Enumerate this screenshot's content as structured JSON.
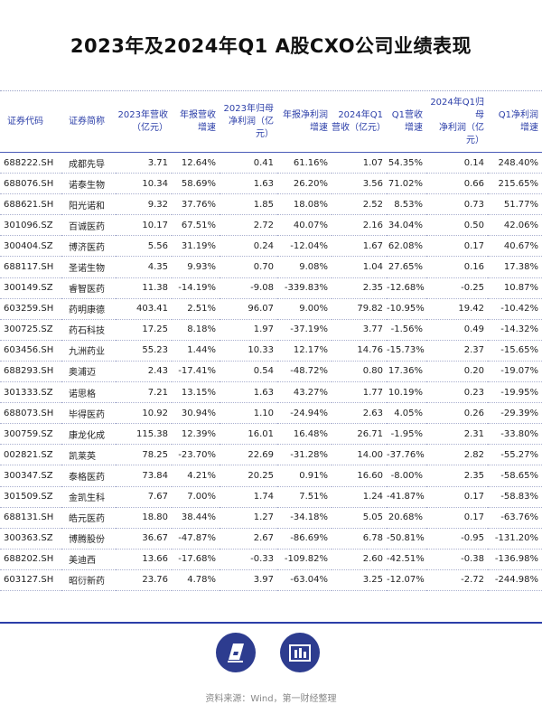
{
  "title": "2023年及2024年Q1 A股CXO公司业绩表现",
  "headers": [
    "证券代码",
    "证券简称",
    "2023年营收\n（亿元）",
    "年报营收\n增速",
    "2023年归母\n净利润（亿元）",
    "年报净利润\n增速",
    "2024年Q1\n营收（亿元）",
    "Q1营收\n增速",
    "2024年Q1归母\n净利润（亿元）",
    "Q1净利润\n增速"
  ],
  "rows": [
    [
      "688222.SH",
      "成都先导",
      "3.71",
      "12.64%",
      "0.41",
      "61.16%",
      "1.07",
      "54.35%",
      "0.14",
      "248.40%"
    ],
    [
      "688076.SH",
      "诺泰生物",
      "10.34",
      "58.69%",
      "1.63",
      "26.20%",
      "3.56",
      "71.02%",
      "0.66",
      "215.65%"
    ],
    [
      "688621.SH",
      "阳光诺和",
      "9.32",
      "37.76%",
      "1.85",
      "18.08%",
      "2.52",
      "8.53%",
      "0.73",
      "51.77%"
    ],
    [
      "301096.SZ",
      "百诚医药",
      "10.17",
      "67.51%",
      "2.72",
      "40.07%",
      "2.16",
      "34.04%",
      "0.50",
      "42.06%"
    ],
    [
      "300404.SZ",
      "博济医药",
      "5.56",
      "31.19%",
      "0.24",
      "-12.04%",
      "1.67",
      "62.08%",
      "0.17",
      "40.67%"
    ],
    [
      "688117.SH",
      "圣诺生物",
      "4.35",
      "9.93%",
      "0.70",
      "9.08%",
      "1.04",
      "27.65%",
      "0.16",
      "17.38%"
    ],
    [
      "300149.SZ",
      "睿智医药",
      "11.38",
      "-14.19%",
      "-9.08",
      "-339.83%",
      "2.35",
      "-12.68%",
      "-0.25",
      "10.87%"
    ],
    [
      "603259.SH",
      "药明康德",
      "403.41",
      "2.51%",
      "96.07",
      "9.00%",
      "79.82",
      "-10.95%",
      "19.42",
      "-10.42%"
    ],
    [
      "300725.SZ",
      "药石科技",
      "17.25",
      "8.18%",
      "1.97",
      "-37.19%",
      "3.77",
      "-1.56%",
      "0.49",
      "-14.32%"
    ],
    [
      "603456.SH",
      "九洲药业",
      "55.23",
      "1.44%",
      "10.33",
      "12.17%",
      "14.76",
      "-15.73%",
      "2.37",
      "-15.65%"
    ],
    [
      "688293.SH",
      "奥浦迈",
      "2.43",
      "-17.41%",
      "0.54",
      "-48.72%",
      "0.80",
      "17.36%",
      "0.20",
      "-19.07%"
    ],
    [
      "301333.SZ",
      "诺思格",
      "7.21",
      "13.15%",
      "1.63",
      "43.27%",
      "1.77",
      "10.19%",
      "0.23",
      "-19.95%"
    ],
    [
      "688073.SH",
      "毕得医药",
      "10.92",
      "30.94%",
      "1.10",
      "-24.94%",
      "2.63",
      "4.05%",
      "0.26",
      "-29.39%"
    ],
    [
      "300759.SZ",
      "康龙化成",
      "115.38",
      "12.39%",
      "16.01",
      "16.48%",
      "26.71",
      "-1.95%",
      "2.31",
      "-33.80%"
    ],
    [
      "002821.SZ",
      "凯莱英",
      "78.25",
      "-23.70%",
      "22.69",
      "-31.28%",
      "14.00",
      "-37.76%",
      "2.82",
      "-55.27%"
    ],
    [
      "300347.SZ",
      "泰格医药",
      "73.84",
      "4.21%",
      "20.25",
      "0.91%",
      "16.60",
      "-8.00%",
      "2.35",
      "-58.65%"
    ],
    [
      "301509.SZ",
      "金凯生科",
      "7.67",
      "7.00%",
      "1.74",
      "7.51%",
      "1.24",
      "-41.87%",
      "0.17",
      "-58.83%"
    ],
    [
      "688131.SH",
      "皓元医药",
      "18.80",
      "38.44%",
      "1.27",
      "-34.18%",
      "5.05",
      "20.68%",
      "0.17",
      "-63.76%"
    ],
    [
      "300363.SZ",
      "博腾股份",
      "36.67",
      "-47.87%",
      "2.67",
      "-86.69%",
      "6.78",
      "-50.81%",
      "-0.95",
      "-131.20%"
    ],
    [
      "688202.SH",
      "美迪西",
      "13.66",
      "-17.68%",
      "-0.33",
      "-109.82%",
      "2.60",
      "-42.51%",
      "-0.38",
      "-136.98%"
    ],
    [
      "603127.SH",
      "昭衍新药",
      "23.76",
      "4.78%",
      "3.97",
      "-63.04%",
      "3.25",
      "-12.07%",
      "-2.72",
      "-244.98%"
    ]
  ],
  "footer": {
    "source": "资料来源：Wind，第一财经整理",
    "logos": [
      "first-financial-logo-icon",
      "yicai-data-logo-icon"
    ]
  },
  "colors": {
    "accent": "#2b3ea8",
    "logo": "#2d3c8f"
  }
}
